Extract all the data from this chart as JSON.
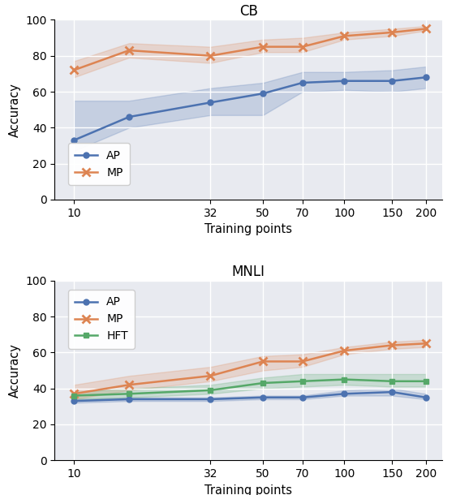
{
  "x_log_positions": [
    10,
    16,
    32,
    50,
    70,
    100,
    150,
    200
  ],
  "x_tick_vals": [
    10,
    32,
    50,
    70,
    100,
    150,
    200
  ],
  "cb": {
    "title": "CB",
    "ap_mean": [
      33,
      46,
      54,
      59,
      65,
      66,
      66,
      68
    ],
    "ap_lower": [
      27,
      40,
      47,
      47,
      60,
      61,
      60,
      62
    ],
    "ap_upper": [
      55,
      55,
      62,
      65,
      71,
      71,
      72,
      74
    ],
    "mp_mean": [
      72,
      83,
      80,
      85,
      85,
      91,
      93,
      95
    ],
    "mp_lower": [
      68,
      79,
      76,
      82,
      82,
      89,
      91,
      94
    ],
    "mp_upper": [
      77,
      87,
      85,
      89,
      90,
      93,
      95,
      96.5
    ]
  },
  "mnli": {
    "title": "MNLI",
    "ap_mean": [
      33,
      34,
      34,
      35,
      35,
      37,
      38,
      35
    ],
    "ap_lower": [
      32,
      33,
      33,
      34,
      34,
      36,
      36,
      34
    ],
    "ap_upper": [
      34,
      35,
      35,
      36,
      36,
      39,
      40,
      37
    ],
    "mp_mean": [
      37,
      42,
      47,
      55,
      55,
      61,
      64,
      65
    ],
    "mp_lower": [
      34,
      39,
      44,
      50,
      52,
      59,
      62,
      63
    ],
    "mp_upper": [
      42,
      47,
      52,
      58,
      59,
      63,
      66,
      67
    ],
    "hft_mean": [
      36,
      37,
      39,
      43,
      44,
      45,
      44,
      44
    ],
    "hft_lower": [
      34,
      35,
      37,
      40,
      41,
      42,
      41,
      41
    ],
    "hft_upper": [
      38,
      40,
      42,
      46,
      48,
      48,
      48,
      48
    ]
  },
  "ap_color": "#4c72b0",
  "mp_color": "#dd8452",
  "hft_color": "#55a868",
  "fill_alpha": 0.22,
  "linewidth": 1.8,
  "markersize": 5,
  "ylabel": "Accuracy",
  "xlabel": "Training points",
  "ylim": [
    0,
    100
  ],
  "bg_color": "#e8eaf0",
  "grid_color": "white"
}
